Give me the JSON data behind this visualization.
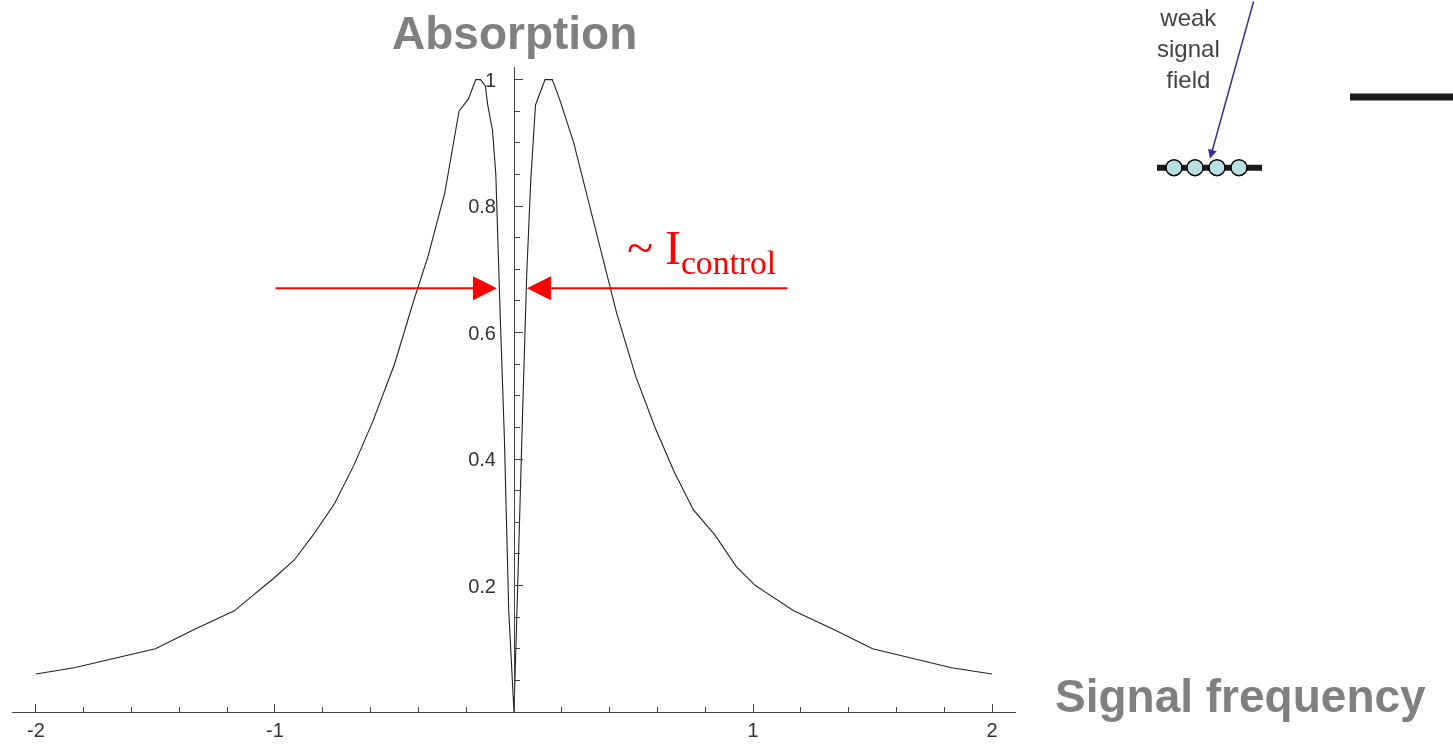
{
  "chart_data": {
    "type": "line",
    "ylabel": "Absorption",
    "xlabel": "Signal frequency",
    "color": "#222222",
    "line_style": "solid",
    "grid": false,
    "x": [
      -2,
      -1.84,
      -1.5,
      -1.34,
      -1.17,
      -1.01,
      -0.92,
      -0.84,
      -0.75,
      -0.67,
      -0.59,
      -0.5,
      -0.42,
      -0.36,
      -0.29,
      -0.23,
      -0.19,
      -0.16,
      -0.14,
      -0.12,
      -0.11,
      -0.09,
      -0.076,
      -0.058,
      -0.04,
      -0.022,
      0,
      0.017,
      0.035,
      0.053,
      0.07,
      0.09,
      0.11,
      0.13,
      0.16,
      0.19,
      0.25,
      0.33,
      0.43,
      0.51,
      0.59,
      0.67,
      0.75,
      0.84,
      0.93,
      1.01,
      1.17,
      1.34,
      1.5,
      1.83,
      2
    ],
    "values": [
      0.06,
      0.07,
      0.1,
      0.13,
      0.16,
      0.21,
      0.24,
      0.28,
      0.33,
      0.39,
      0.46,
      0.55,
      0.65,
      0.72,
      0.82,
      0.95,
      0.97,
      1.0,
      1.0,
      0.99,
      0.96,
      0.92,
      0.85,
      0.63,
      0.43,
      0.16,
      0,
      0.22,
      0.46,
      0.69,
      0.84,
      0.96,
      0.98,
      1.0,
      1.0,
      0.97,
      0.9,
      0.78,
      0.63,
      0.53,
      0.45,
      0.38,
      0.32,
      0.28,
      0.23,
      0.2,
      0.16,
      0.13,
      0.1,
      0.07,
      0.06
    ],
    "xlim": [
      -2.1,
      2.1
    ],
    "ylim": [
      0,
      1.02
    ],
    "xticks": [
      -2,
      {
        "value": -1.8,
        "label": null
      },
      {
        "value": -1.6,
        "label": null
      },
      {
        "value": -1.4,
        "label": null
      },
      {
        "value": -1.2,
        "label": null
      },
      -1,
      {
        "value": -0.8,
        "label": null
      },
      {
        "value": -0.6,
        "label": null
      },
      {
        "value": -0.4,
        "label": null
      },
      {
        "value": -0.2,
        "label": null
      },
      {
        "value": 0.2,
        "label": null
      },
      {
        "value": 0.4,
        "label": null
      },
      {
        "value": 0.6,
        "label": null
      },
      {
        "value": 0.8,
        "label": null
      },
      1,
      {
        "value": 1.2,
        "label": null
      },
      {
        "value": 1.4,
        "label": null
      },
      {
        "value": 1.6,
        "label": null
      },
      {
        "value": 1.8,
        "label": null
      },
      2
    ],
    "yticks": [
      {
        "value": 0.05,
        "label": null
      },
      {
        "value": 0.1,
        "label": null
      },
      {
        "value": 0.15,
        "label": null
      },
      0.2,
      {
        "value": 0.25,
        "label": null
      },
      {
        "value": 0.3,
        "label": null
      },
      {
        "value": 0.35,
        "label": null
      },
      0.4,
      {
        "value": 0.45,
        "label": null
      },
      {
        "value": 0.5,
        "label": null
      },
      {
        "value": 0.55,
        "label": null
      },
      0.6,
      {
        "value": 0.65,
        "label": null
      },
      {
        "value": 0.7,
        "label": null
      },
      {
        "value": 0.75,
        "label": null
      },
      0.8,
      {
        "value": 0.85,
        "label": null
      },
      {
        "value": 0.9,
        "label": null
      },
      {
        "value": 0.95,
        "label": null
      },
      1
    ],
    "annotations": [
      {
        "text": "~ I$_{control}$",
        "x": 0.05,
        "y": 0.67
      },
      "weak signal field"
    ]
  }
}
